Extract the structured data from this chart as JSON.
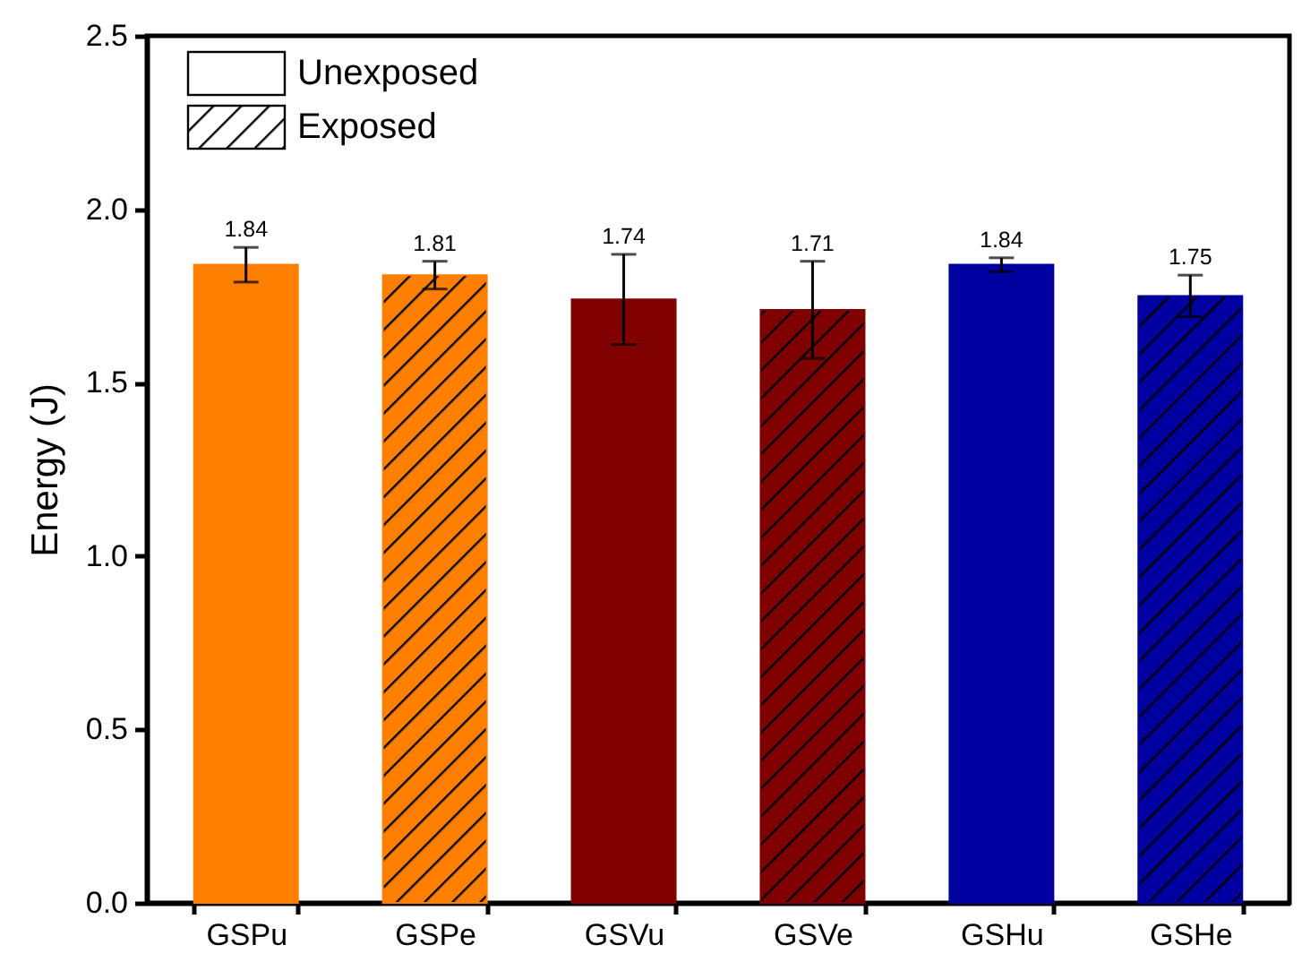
{
  "chart_data": {
    "type": "bar",
    "ylabel": "Energy (J)",
    "categories": [
      "GSPu",
      "GSPe",
      "GSVu",
      "GSVe",
      "GSHu",
      "GSHe"
    ],
    "values": [
      1.84,
      1.81,
      1.74,
      1.71,
      1.84,
      1.75
    ],
    "colors": [
      "#ff8000",
      "#ff8000",
      "#800000",
      "#800000",
      "#0000a0",
      "#0000a0"
    ],
    "errors": [
      0.05,
      0.04,
      0.13,
      0.14,
      0.02,
      0.06
    ],
    "annotations": [
      "Unexposed",
      "Exposed"
    ],
    "ylim": [
      0,
      2.5
    ],
    "yticks": [
      {
        "value": 0,
        "label": "0.0"
      },
      {
        "value": 0.5,
        "label": "0.5"
      },
      {
        "value": 1,
        "label": "1.0"
      },
      {
        "value": 1.5,
        "label": "1.5"
      },
      {
        "value": 2,
        "label": "2.0"
      },
      {
        "value": 2.5,
        "label": "2.5"
      }
    ],
    "data_labels": true,
    "grid": false
  }
}
